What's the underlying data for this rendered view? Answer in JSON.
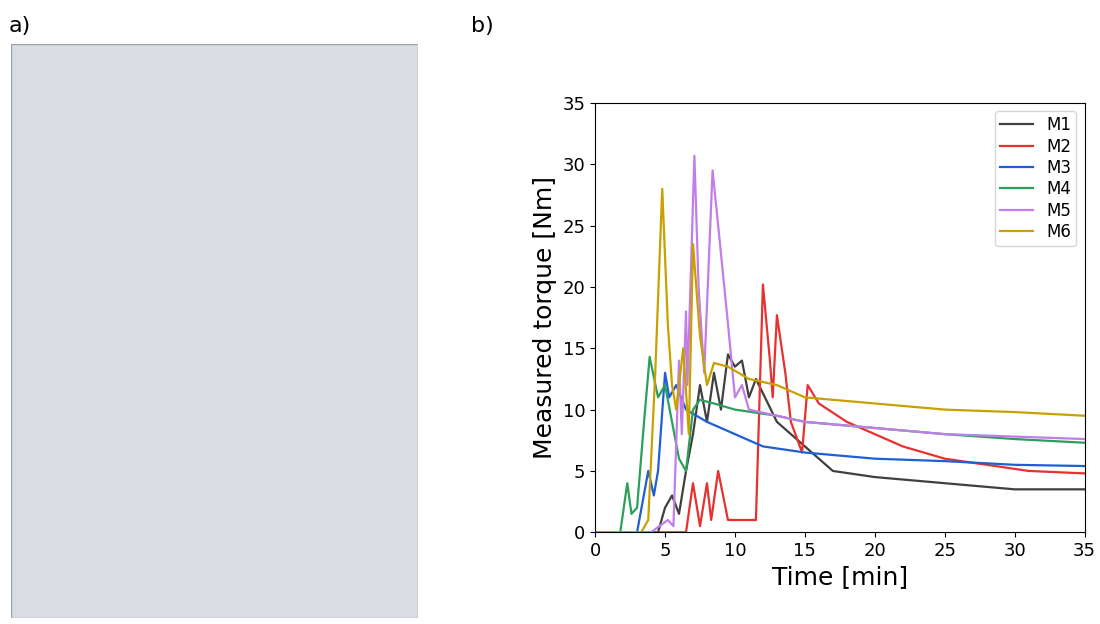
{
  "panel_labels": [
    "a)",
    "b)"
  ],
  "chart_data": {
    "type": "line",
    "x_label": "Time [min]",
    "y_label": "Measured torque [Nm]",
    "xlim": [
      0,
      35
    ],
    "xticks": [
      0,
      5,
      10,
      15,
      20,
      25,
      30,
      35
    ],
    "ylim": [
      0,
      35
    ],
    "yticks": [
      0,
      5,
      10,
      15,
      20,
      25,
      30,
      35
    ],
    "legend": "upper right",
    "series": [
      {
        "name": "M1",
        "color": "#404040",
        "x": [
          0,
          4.5,
          5,
          5.5,
          6,
          6.5,
          7,
          7.5,
          8,
          8.5,
          9,
          9.5,
          10,
          10.5,
          11,
          11.5,
          13,
          15,
          17,
          20,
          25,
          30,
          35
        ],
        "values": [
          0,
          0,
          2,
          3,
          1.5,
          5,
          8,
          12,
          9,
          13,
          10,
          14.5,
          13.5,
          14,
          11,
          12.5,
          9,
          7,
          5,
          4.5,
          4,
          3.5,
          3.5
        ]
      },
      {
        "name": "M2",
        "color": "#e8312f",
        "x": [
          0,
          6.5,
          7,
          7.5,
          8,
          8.3,
          8.8,
          9.5,
          11.5,
          12,
          12.5,
          12.7,
          13,
          13.6,
          14,
          14.8,
          15.2,
          16,
          18,
          20,
          22,
          25,
          28,
          31,
          35
        ],
        "values": [
          0,
          0,
          4,
          0.5,
          4,
          1,
          5,
          1,
          1,
          20.2,
          14,
          11,
          17.7,
          13,
          9,
          6.5,
          12,
          10.5,
          9,
          8,
          7,
          6,
          5.5,
          5,
          4.8
        ]
      },
      {
        "name": "M3",
        "color": "#1f5fd6",
        "x": [
          0,
          3,
          3.8,
          4.2,
          4.5,
          5,
          5.3,
          5.8,
          6.5,
          8,
          10,
          12,
          15,
          20,
          25,
          30,
          35
        ],
        "values": [
          0,
          0,
          5,
          3,
          5,
          13,
          11,
          12,
          10,
          9,
          8,
          7,
          6.5,
          6,
          5.8,
          5.5,
          5.4
        ]
      },
      {
        "name": "M4",
        "color": "#2ca05a",
        "x": [
          0,
          1.8,
          2.3,
          2.6,
          3,
          3.5,
          3.9,
          4.5,
          5,
          5.5,
          6,
          6.5,
          7,
          7.5,
          8.5,
          10,
          13,
          15,
          20,
          25,
          30,
          35
        ],
        "values": [
          0,
          0,
          4,
          1.5,
          2,
          9,
          14.3,
          11,
          12,
          9,
          6,
          5,
          10,
          10.8,
          10.5,
          10,
          9.5,
          9,
          8.5,
          8,
          7.6,
          7.3
        ]
      },
      {
        "name": "M5",
        "color": "#c27ee8",
        "x": [
          0,
          4,
          5.2,
          5.6,
          6,
          6.2,
          6.5,
          6.6,
          7.1,
          7.4,
          7.8,
          8.4,
          8.8,
          9.5,
          10,
          10.5,
          11,
          13,
          15,
          20,
          25,
          30,
          35
        ],
        "values": [
          0,
          0,
          1,
          0.5,
          14,
          8,
          18,
          12,
          30.7,
          20,
          13,
          29.5,
          25,
          17,
          11,
          12,
          10,
          9.5,
          9,
          8.5,
          8,
          7.8,
          7.6
        ]
      },
      {
        "name": "M6",
        "color": "#c8a000",
        "x": [
          0,
          3.3,
          3.8,
          4.3,
          4.8,
          5.2,
          5.5,
          5.8,
          6.3,
          6.7,
          7,
          7.5,
          8,
          8.5,
          9.5,
          11,
          13,
          15,
          20,
          25,
          30,
          35
        ],
        "values": [
          0,
          0,
          1,
          13,
          28,
          17,
          12,
          10,
          15,
          8,
          23.5,
          16,
          12,
          13.8,
          13.5,
          12.5,
          12,
          11,
          10.5,
          10,
          9.8,
          9.5
        ]
      }
    ]
  }
}
